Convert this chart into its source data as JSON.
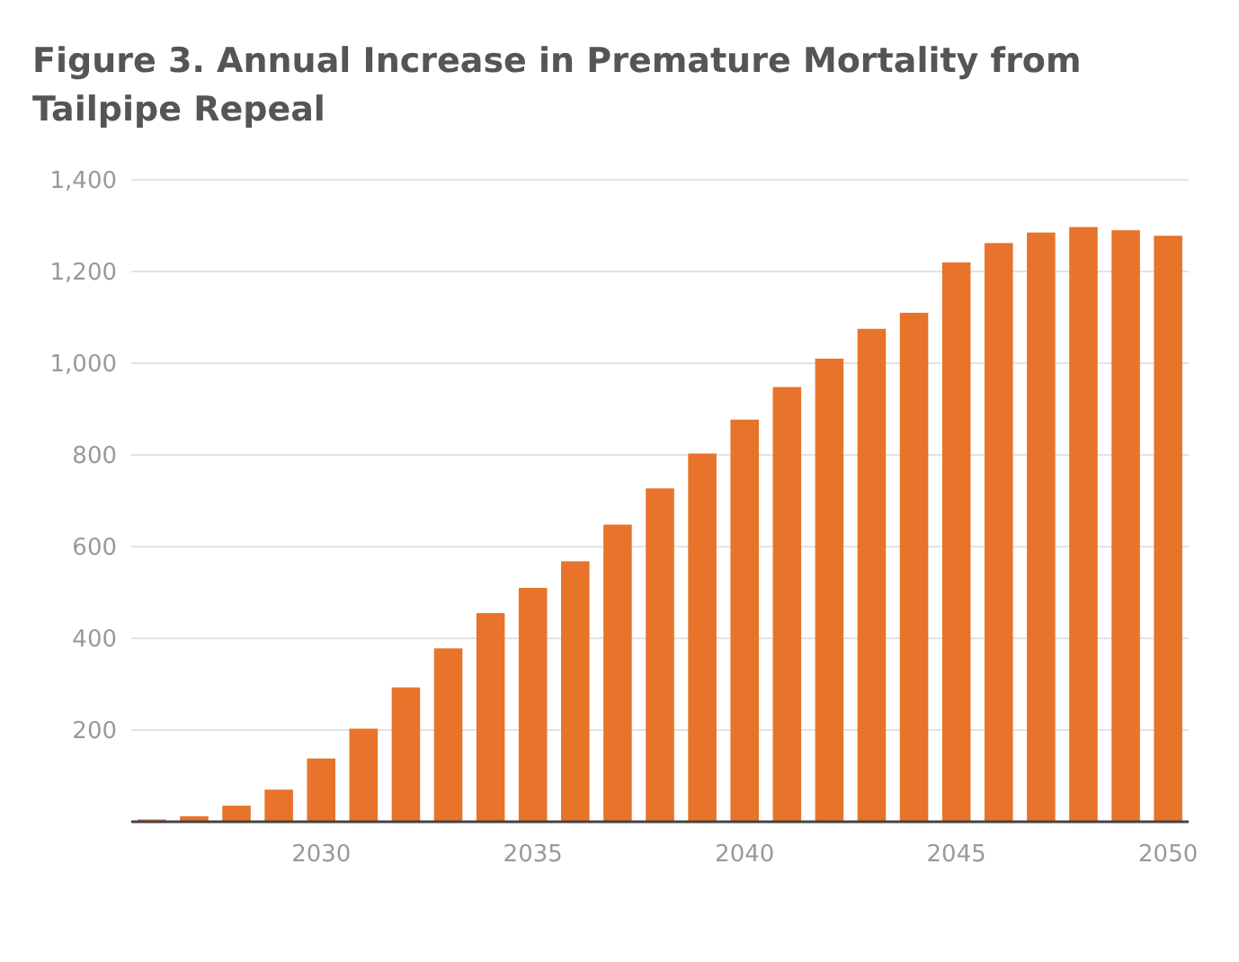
{
  "chart_data": {
    "type": "bar",
    "title": "Figure 3. Annual Increase in Premature Mortality from Tailpipe Repeal",
    "categories": [
      null,
      null,
      null,
      null,
      "2030",
      null,
      null,
      null,
      null,
      "2035",
      null,
      null,
      null,
      null,
      "2040",
      null,
      null,
      null,
      null,
      "2045",
      null,
      null,
      null,
      null,
      "2050"
    ],
    "values": [
      5,
      12,
      35,
      70,
      138,
      203,
      293,
      378,
      455,
      510,
      568,
      648,
      727,
      803,
      877,
      948,
      1010,
      1075,
      1110,
      1220,
      1262,
      1285,
      1297,
      1290,
      1278
    ],
    "color": "#e8732a",
    "ylim": [
      0,
      1400
    ],
    "yticks": [
      {
        "value": 0,
        "label": null
      },
      {
        "value": 200,
        "label": "200"
      },
      {
        "value": 400,
        "label": "400"
      },
      {
        "value": 600,
        "label": "600"
      },
      {
        "value": 800,
        "label": "800"
      },
      {
        "value": 1000,
        "label": "1,000"
      },
      {
        "value": 1200,
        "label": "1,200"
      },
      {
        "value": 1400,
        "label": "1,400"
      }
    ],
    "grid": "y"
  }
}
